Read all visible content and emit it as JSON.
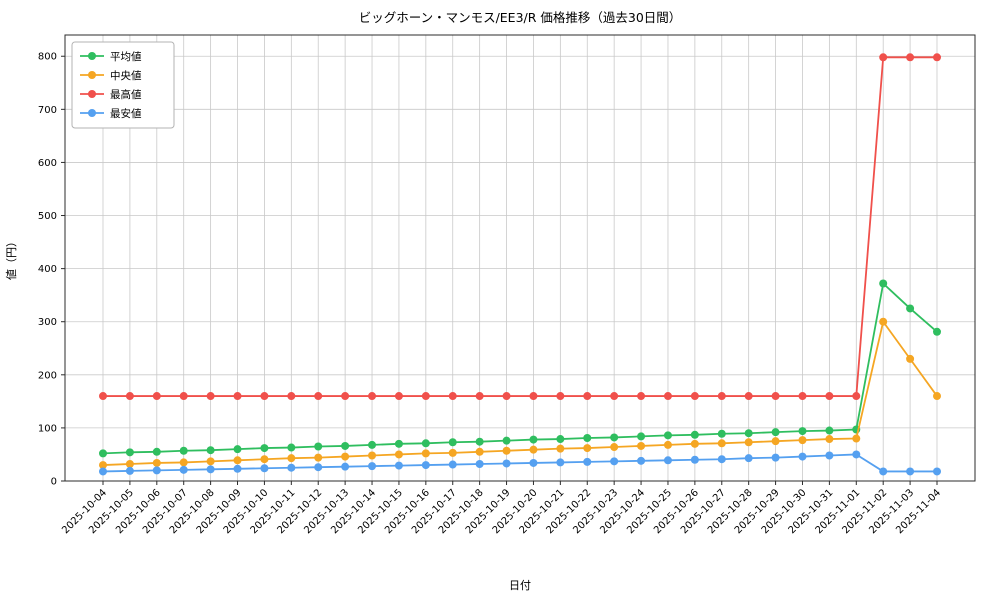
{
  "chart_data": {
    "type": "line",
    "title": "ビッグホーン・マンモス/EE3/R 価格推移（過去30日間）",
    "xlabel": "日付",
    "ylabel": "値（円）",
    "ylim": [
      0,
      840
    ],
    "yticks": [
      0,
      100,
      200,
      300,
      400,
      500,
      600,
      700,
      800
    ],
    "grid": true,
    "legend_position": "upper-left",
    "marker": "circle",
    "categories": [
      "2025-10-04",
      "2025-10-05",
      "2025-10-06",
      "2025-10-07",
      "2025-10-08",
      "2025-10-09",
      "2025-10-10",
      "2025-10-11",
      "2025-10-12",
      "2025-10-13",
      "2025-10-14",
      "2025-10-15",
      "2025-10-16",
      "2025-10-17",
      "2025-10-18",
      "2025-10-19",
      "2025-10-20",
      "2025-10-21",
      "2025-10-22",
      "2025-10-23",
      "2025-10-24",
      "2025-10-25",
      "2025-10-26",
      "2025-10-27",
      "2025-10-28",
      "2025-10-29",
      "2025-10-30",
      "2025-10-31",
      "2025-11-01",
      "2025-11-02",
      "2025-11-03",
      "2025-11-04"
    ],
    "series": [
      {
        "name": "平均値",
        "color": "#2fbe5f",
        "values": [
          52,
          54,
          55,
          57,
          58,
          60,
          62,
          63,
          65,
          66,
          68,
          70,
          71,
          73,
          74,
          76,
          78,
          79,
          81,
          82,
          84,
          86,
          87,
          89,
          90,
          92,
          94,
          95,
          97,
          372,
          325,
          281
        ]
      },
      {
        "name": "中央値",
        "color": "#f5a623",
        "values": [
          30,
          32,
          34,
          35,
          37,
          39,
          41,
          43,
          44,
          46,
          48,
          50,
          52,
          53,
          55,
          57,
          59,
          61,
          62,
          64,
          66,
          68,
          70,
          71,
          73,
          75,
          77,
          79,
          80,
          300,
          230,
          160
        ]
      },
      {
        "name": "最高値",
        "color": "#f0504b",
        "values": [
          160,
          160,
          160,
          160,
          160,
          160,
          160,
          160,
          160,
          160,
          160,
          160,
          160,
          160,
          160,
          160,
          160,
          160,
          160,
          160,
          160,
          160,
          160,
          160,
          160,
          160,
          160,
          160,
          160,
          798,
          798,
          798
        ]
      },
      {
        "name": "最安値",
        "color": "#55a0f0",
        "values": [
          18,
          19,
          20,
          21,
          22,
          23,
          24,
          25,
          26,
          27,
          28,
          29,
          30,
          31,
          32,
          33,
          34,
          35,
          36,
          37,
          38,
          39,
          40,
          41,
          43,
          44,
          46,
          48,
          50,
          18,
          18,
          18
        ]
      }
    ]
  }
}
